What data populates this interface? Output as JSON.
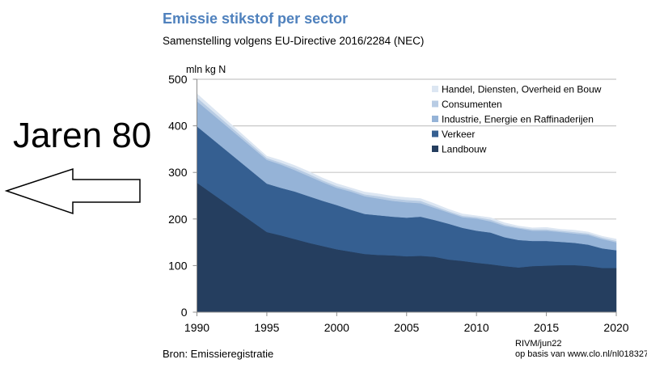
{
  "annotation": {
    "text": "Jaren 80",
    "arrow_direction": "left"
  },
  "footer": {
    "source": "Bron: Emissieregistratie",
    "credit_line1": "RIVM/jun22",
    "credit_line2": "op basis van www.clo.nl/nl018327"
  },
  "chart_data": {
    "type": "area",
    "stacked": true,
    "title": "Emissie stikstof per sector",
    "subtitle": "Samenstelling volgens EU-Directive 2016/2284 (NEC)",
    "xlabel": "",
    "ylabel": "mln kg N",
    "xlim": [
      1990,
      2020
    ],
    "ylim": [
      0,
      500
    ],
    "yticks": [
      0,
      100,
      200,
      300,
      400,
      500
    ],
    "xticks": [
      1990,
      1995,
      2000,
      2005,
      2010,
      2015,
      2020
    ],
    "grid": "horizontal",
    "legend_position": "top-right",
    "x": [
      1990,
      1995,
      1996,
      1997,
      1998,
      1999,
      2000,
      2001,
      2002,
      2003,
      2004,
      2005,
      2006,
      2007,
      2008,
      2009,
      2010,
      2011,
      2012,
      2013,
      2014,
      2015,
      2016,
      2017,
      2018,
      2019,
      2020
    ],
    "series": [
      {
        "name": "Landbouw",
        "color": "#253e5f",
        "values": [
          278,
          172,
          165,
          157,
          149,
          142,
          135,
          130,
          125,
          123,
          122,
          120,
          121,
          119,
          113,
          110,
          106,
          103,
          99,
          96,
          99,
          100,
          101,
          101,
          99,
          95,
          95
        ]
      },
      {
        "name": "Verkeer",
        "color": "#355f91",
        "values": [
          121,
          104,
          102,
          102,
          100,
          97,
          95,
          90,
          86,
          85,
          83,
          83,
          84,
          79,
          77,
          71,
          69,
          68,
          62,
          59,
          54,
          53,
          50,
          48,
          46,
          42,
          38
        ]
      },
      {
        "name": "Industrie, Energie en Raffinaderijen",
        "color": "#95b3d7",
        "values": [
          54,
          51,
          50,
          46,
          43,
          40,
          37,
          39,
          38,
          36,
          34,
          33,
          29,
          26,
          24,
          23,
          26,
          24,
          24,
          25,
          22,
          22,
          21,
          20,
          21,
          20,
          17
        ]
      },
      {
        "name": "Consumenten",
        "color": "#b8cce4",
        "values": [
          8,
          4,
          4,
          5,
          5,
          4,
          4,
          4,
          4,
          5,
          5,
          5,
          5,
          4,
          3,
          3,
          3,
          4,
          3,
          2,
          3,
          3,
          3,
          3,
          3,
          3,
          3
        ]
      },
      {
        "name": "Handel, Diensten, Overheid en Bouw",
        "color": "#dce6f2",
        "values": [
          8,
          4,
          5,
          5,
          5,
          5,
          5,
          4,
          5,
          5,
          5,
          5,
          5,
          5,
          4,
          4,
          3,
          4,
          4,
          3,
          3,
          4,
          3,
          4,
          3,
          3,
          4
        ]
      }
    ],
    "legend_order": [
      "Handel, Diensten, Overheid en Bouw",
      "Consumenten",
      "Industrie, Energie en Raffinaderijen",
      "Verkeer",
      "Landbouw"
    ]
  }
}
